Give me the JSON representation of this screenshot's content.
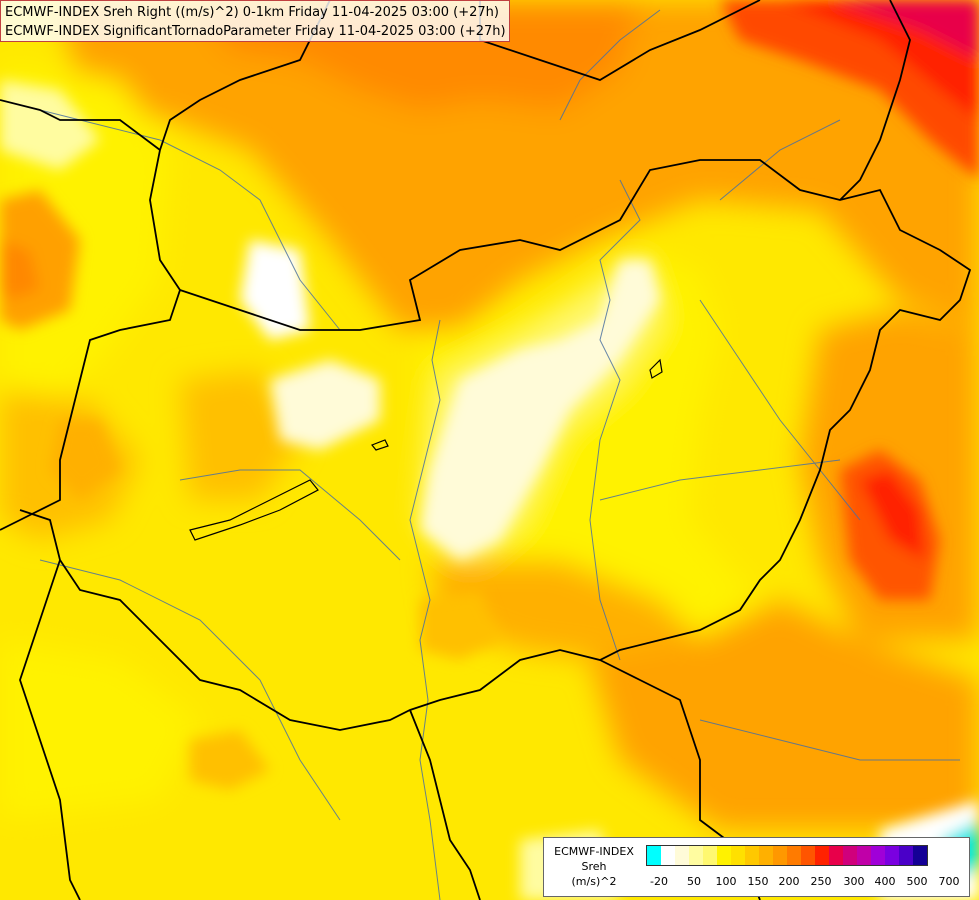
{
  "title": {
    "line1": "ECMWF-INDEX Sreh Right ((m/s)^2) 0-1km Friday 11-04-2025 03:00 (+27h)",
    "line2": "ECMWF-INDEX SignificantTornadoParameter Friday 11-04-2025 03:00 (+27h)"
  },
  "legend": {
    "line1": "ECMWF-INDEX",
    "line2": "Sreh",
    "line3": "(m/s)^2",
    "ticks": [
      "-20",
      "50",
      "100",
      "150",
      "200",
      "250",
      "300",
      "400",
      "500",
      "700"
    ],
    "colors": [
      "#00ffff",
      "#ffffff",
      "#fffbd8",
      "#fffca0",
      "#fff870",
      "#fff200",
      "#ffe000",
      "#ffc800",
      "#ffb000",
      "#ff9800",
      "#ff7b00",
      "#ff5500",
      "#ff2200",
      "#e8004a",
      "#d0007c",
      "#c000a8",
      "#a000d8",
      "#7a00e0",
      "#4a00c8",
      "#140096"
    ]
  },
  "map": {
    "background_color": "#ffee00",
    "border_color": "#000000",
    "river_color": "#4a70a0"
  }
}
